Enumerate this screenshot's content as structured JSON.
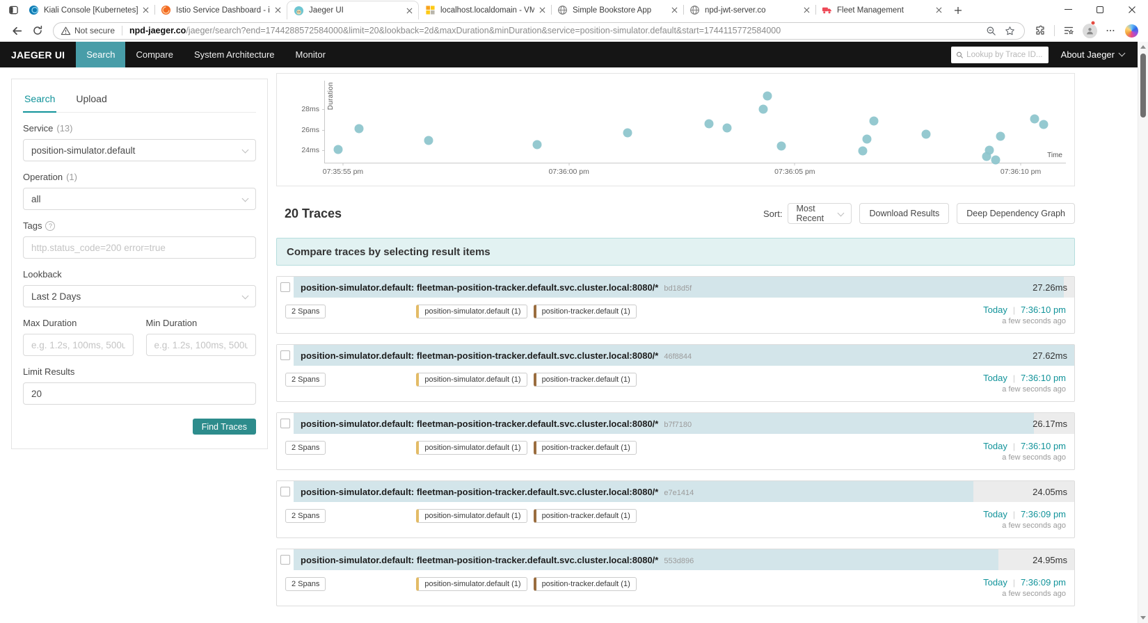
{
  "browser": {
    "tab_strip": {
      "tabs": [
        {
          "title": "Kiali Console [Kubernetes]",
          "favicon": "kiali",
          "active": false
        },
        {
          "title": "Istio Service Dashboard - istio - D",
          "favicon": "grafana",
          "active": false
        },
        {
          "title": "Jaeger UI",
          "favicon": "jaeger",
          "active": true
        },
        {
          "title": "localhost.localdomain - VMware",
          "favicon": "vmware",
          "active": false
        },
        {
          "title": "Simple Bookstore App",
          "favicon": "globe",
          "active": false
        },
        {
          "title": "npd-jwt-server.co",
          "favicon": "globe",
          "active": false
        },
        {
          "title": "Fleet Management",
          "favicon": "truck",
          "active": false
        }
      ]
    },
    "toolbar": {
      "security_label": "Not secure",
      "url_host": "npd-jaeger.co",
      "url_path": "/jaeger/search?end=1744288572584000&limit=20&lookback=2d&maxDuration&minDuration&service=position-simulator.default&start=1744115772584000"
    }
  },
  "navbar": {
    "brand": "JAEGER UI",
    "items": [
      {
        "label": "Search",
        "active": true
      },
      {
        "label": "Compare",
        "active": false
      },
      {
        "label": "System Architecture",
        "active": false
      },
      {
        "label": "Monitor",
        "active": false
      }
    ],
    "trace_lookup_placeholder": "Lookup by Trace ID...",
    "about_label": "About Jaeger"
  },
  "search_panel": {
    "tabs": [
      {
        "label": "Search",
        "active": true
      },
      {
        "label": "Upload",
        "active": false
      }
    ],
    "service": {
      "label": "Service",
      "count": "(13)",
      "value": "position-simulator.default"
    },
    "operation": {
      "label": "Operation",
      "count": "(1)",
      "value": "all"
    },
    "tags": {
      "label": "Tags",
      "placeholder": "http.status_code=200 error=true"
    },
    "lookback": {
      "label": "Lookback",
      "value": "Last 2 Days"
    },
    "max_duration": {
      "label": "Max Duration",
      "placeholder": "e.g. 1.2s, 100ms, 500us"
    },
    "min_duration": {
      "label": "Min Duration",
      "placeholder": "e.g. 1.2s, 100ms, 500us"
    },
    "limit": {
      "label": "Limit Results",
      "value": "20"
    },
    "submit_label": "Find Traces"
  },
  "results": {
    "count_label": "20 Traces",
    "sort_label": "Sort:",
    "sort_value": "Most Recent",
    "download_label": "Download Results",
    "ddg_label": "Deep Dependency Graph",
    "banner": "Compare traces by selecting result items",
    "tag_colors": [
      "#e3bb66",
      "#9a6d3f"
    ],
    "traces": [
      {
        "title": "position-simulator.default: fleetman-position-tracker.default.svc.cluster.local:8080/*",
        "id": "bd18d5f",
        "duration": "27.26ms",
        "bar_pct": 98.7,
        "spans": "2 Spans",
        "tags": [
          "position-simulator.default (1)",
          "position-tracker.default (1)"
        ],
        "date": "Today",
        "time": "7:36:10 pm",
        "ago": "a few seconds ago"
      },
      {
        "title": "position-simulator.default: fleetman-position-tracker.default.svc.cluster.local:8080/*",
        "id": "46f8844",
        "duration": "27.62ms",
        "bar_pct": 100,
        "spans": "2 Spans",
        "tags": [
          "position-simulator.default (1)",
          "position-tracker.default (1)"
        ],
        "date": "Today",
        "time": "7:36:10 pm",
        "ago": "a few seconds ago"
      },
      {
        "title": "position-simulator.default: fleetman-position-tracker.default.svc.cluster.local:8080/*",
        "id": "b7f7180",
        "duration": "26.17ms",
        "bar_pct": 94.8,
        "spans": "2 Spans",
        "tags": [
          "position-simulator.default (1)",
          "position-tracker.default (1)"
        ],
        "date": "Today",
        "time": "7:36:10 pm",
        "ago": "a few seconds ago"
      },
      {
        "title": "position-simulator.default: fleetman-position-tracker.default.svc.cluster.local:8080/*",
        "id": "e7e1414",
        "duration": "24.05ms",
        "bar_pct": 87.1,
        "spans": "2 Spans",
        "tags": [
          "position-simulator.default (1)",
          "position-tracker.default (1)"
        ],
        "date": "Today",
        "time": "7:36:09 pm",
        "ago": "a few seconds ago"
      },
      {
        "title": "position-simulator.default: fleetman-position-tracker.default.svc.cluster.local:8080/*",
        "id": "553d896",
        "duration": "24.95ms",
        "bar_pct": 90.3,
        "spans": "2 Spans",
        "tags": [
          "position-simulator.default (1)",
          "position-tracker.default (1)"
        ],
        "date": "Today",
        "time": "7:36:09 pm",
        "ago": "a few seconds ago"
      }
    ]
  },
  "chart_data": {
    "type": "scatter",
    "title": "",
    "xlabel": "Time",
    "ylabel": "Duration",
    "x_unit": "seconds after 07:35:55 pm",
    "y_unit": "ms",
    "x_domain": [
      -0.4,
      16.0
    ],
    "y_domain": [
      22.8,
      30.8
    ],
    "grid": false,
    "x_ticks": [
      {
        "t": 0,
        "label": "07:35:55 pm"
      },
      {
        "t": 5,
        "label": "07:36:00 pm"
      },
      {
        "t": 10,
        "label": "07:36:05 pm"
      },
      {
        "t": 15,
        "label": "07:36:10 pm"
      }
    ],
    "y_ticks": [
      {
        "v": 28,
        "label": "28ms"
      },
      {
        "v": 26,
        "label": "26ms"
      },
      {
        "v": 24,
        "label": "24ms"
      }
    ],
    "point_color": "#8cc4cc",
    "points": [
      {
        "t": -0.1,
        "ms": 24.1
      },
      {
        "t": 0.35,
        "ms": 26.1
      },
      {
        "t": 1.9,
        "ms": 25.0
      },
      {
        "t": 4.3,
        "ms": 24.55
      },
      {
        "t": 6.3,
        "ms": 25.7
      },
      {
        "t": 8.1,
        "ms": 26.6
      },
      {
        "t": 8.5,
        "ms": 26.2
      },
      {
        "t": 9.3,
        "ms": 28.0
      },
      {
        "t": 9.4,
        "ms": 29.3
      },
      {
        "t": 9.7,
        "ms": 24.45
      },
      {
        "t": 11.5,
        "ms": 23.95
      },
      {
        "t": 11.6,
        "ms": 25.1
      },
      {
        "t": 11.75,
        "ms": 26.85
      },
      {
        "t": 12.9,
        "ms": 25.6
      },
      {
        "t": 14.25,
        "ms": 23.4
      },
      {
        "t": 14.3,
        "ms": 24.0
      },
      {
        "t": 14.45,
        "ms": 23.1
      },
      {
        "t": 14.55,
        "ms": 25.35
      },
      {
        "t": 15.3,
        "ms": 27.1
      },
      {
        "t": 15.5,
        "ms": 26.55
      }
    ]
  },
  "colors": {
    "accent_teal": "#11939a",
    "nav_active": "#489da8",
    "find_button": "#2d8c8c",
    "duration_bar": "#d3e5ea",
    "banner_bg": "#e2f2f2",
    "tag_service_1": "#e3bb66",
    "tag_service_2": "#9a6d3f"
  }
}
